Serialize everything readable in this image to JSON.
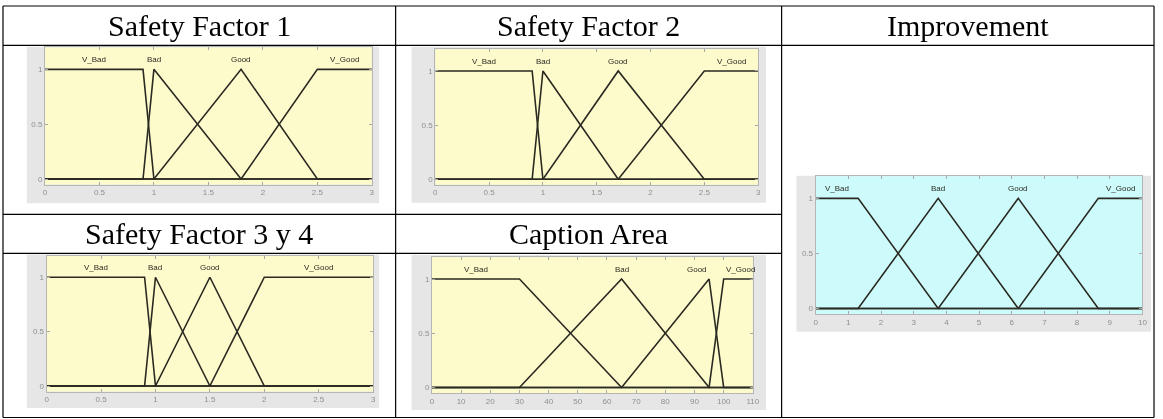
{
  "chart_data": [
    {
      "type": "line",
      "title": "Safety Factor 1",
      "xlim": [
        0,
        3
      ],
      "xticks": [
        0,
        0.5,
        1,
        1.5,
        2,
        2.5,
        3
      ],
      "ylim": [
        -0.05,
        1.2
      ],
      "yticks": [
        0,
        0.5,
        1
      ],
      "series": [
        {
          "name": "V_Bad",
          "color": "#2a2a22",
          "x": [
            0,
            0.9,
            1,
            3
          ],
          "values": [
            1,
            1,
            0,
            0
          ]
        },
        {
          "name": "Bad",
          "color": "#2a2a22",
          "x": [
            0,
            0.9,
            1,
            1.8,
            3
          ],
          "values": [
            0,
            0,
            1,
            0,
            0
          ]
        },
        {
          "name": "Good",
          "color": "#2a2a22",
          "x": [
            0,
            1,
            1.8,
            2.5,
            3
          ],
          "values": [
            0,
            0,
            1,
            0,
            0
          ]
        },
        {
          "name": "V_Good",
          "color": "#2a2a22",
          "x": [
            0,
            1.8,
            2.5,
            3
          ],
          "values": [
            0,
            0,
            1,
            1
          ]
        }
      ]
    },
    {
      "type": "line",
      "title": "Safety Factor 2",
      "xlim": [
        0,
        3
      ],
      "xticks": [
        0,
        0.5,
        1,
        1.5,
        2,
        2.5,
        3
      ],
      "ylim": [
        -0.05,
        1.2
      ],
      "yticks": [
        0,
        0.5,
        1
      ],
      "series": [
        {
          "name": "V_Bad",
          "color": "#2a2a22",
          "x": [
            0,
            0.9,
            1,
            3
          ],
          "values": [
            1,
            1,
            0,
            0
          ]
        },
        {
          "name": "Bad",
          "color": "#2a2a22",
          "x": [
            0,
            0.9,
            1,
            1.7,
            3
          ],
          "values": [
            0,
            0,
            1,
            0,
            0
          ]
        },
        {
          "name": "Good",
          "color": "#2a2a22",
          "x": [
            0,
            1,
            1.7,
            2.5,
            3
          ],
          "values": [
            0,
            0,
            1,
            0,
            0
          ]
        },
        {
          "name": "V_Good",
          "color": "#2a2a22",
          "x": [
            0,
            1.7,
            2.5,
            3
          ],
          "values": [
            0,
            0,
            1,
            1
          ]
        }
      ]
    },
    {
      "type": "line",
      "title": "Improvement",
      "xlim": [
        0,
        10
      ],
      "xticks": [
        0,
        1,
        2,
        3,
        4,
        5,
        6,
        7,
        8,
        9,
        10
      ],
      "ylim": [
        -0.05,
        1.2
      ],
      "yticks": [
        0,
        0.5,
        1
      ],
      "series": [
        {
          "name": "V_Bad",
          "color": "#2a2a22",
          "x": [
            0,
            1.3,
            3.75,
            10
          ],
          "values": [
            1,
            1,
            0,
            0
          ]
        },
        {
          "name": "Bad",
          "color": "#2a2a22",
          "x": [
            0,
            1.3,
            3.75,
            6.2,
            10
          ],
          "values": [
            0,
            0,
            1,
            0,
            0
          ]
        },
        {
          "name": "Good",
          "color": "#2a2a22",
          "x": [
            0,
            3.75,
            6.2,
            8.65,
            10
          ],
          "values": [
            0,
            0,
            1,
            0,
            0
          ]
        },
        {
          "name": "V_Good",
          "color": "#2a2a22",
          "x": [
            0,
            6.2,
            8.65,
            10
          ],
          "values": [
            0,
            0,
            1,
            1
          ]
        }
      ]
    },
    {
      "type": "line",
      "title": "Safety Factor 3 y 4",
      "xlim": [
        0,
        3
      ],
      "xticks": [
        0,
        0.5,
        1,
        1.5,
        2,
        2.5,
        3
      ],
      "ylim": [
        -0.05,
        1.2
      ],
      "yticks": [
        0,
        0.5,
        1
      ],
      "series": [
        {
          "name": "V_Bad",
          "color": "#2a2a22",
          "x": [
            0,
            0.9,
            1,
            3
          ],
          "values": [
            1,
            1,
            0,
            0
          ]
        },
        {
          "name": "Bad",
          "color": "#2a2a22",
          "x": [
            0,
            0.9,
            1,
            1.5,
            3
          ],
          "values": [
            0,
            0,
            1,
            0,
            0
          ]
        },
        {
          "name": "Good",
          "color": "#2a2a22",
          "x": [
            0,
            1,
            1.5,
            2,
            3
          ],
          "values": [
            0,
            0,
            1,
            0,
            0
          ]
        },
        {
          "name": "V_Good",
          "color": "#2a2a22",
          "x": [
            0,
            1.5,
            2,
            3
          ],
          "values": [
            0,
            0,
            1,
            1
          ]
        }
      ]
    },
    {
      "type": "line",
      "title": "Caption Area",
      "xlim": [
        0,
        110
      ],
      "xticks": [
        0,
        10,
        20,
        30,
        40,
        50,
        60,
        70,
        80,
        90,
        100,
        110
      ],
      "ylim": [
        -0.05,
        1.2
      ],
      "yticks": [
        0,
        0.5,
        1
      ],
      "series": [
        {
          "name": "V_Bad",
          "color": "#2a2a22",
          "x": [
            0,
            30,
            65,
            110
          ],
          "values": [
            1,
            1,
            0,
            0
          ]
        },
        {
          "name": "Bad",
          "color": "#2a2a22",
          "x": [
            0,
            30,
            65,
            95,
            110
          ],
          "values": [
            0,
            0,
            1,
            0,
            0
          ]
        },
        {
          "name": "Good",
          "color": "#2a2a22",
          "x": [
            0,
            65,
            95,
            100,
            110
          ],
          "values": [
            0,
            0,
            1,
            0,
            0
          ]
        },
        {
          "name": "V_Good",
          "color": "#2a2a22",
          "x": [
            0,
            95,
            100,
            110
          ],
          "values": [
            0,
            0,
            1,
            1
          ]
        }
      ]
    }
  ]
}
